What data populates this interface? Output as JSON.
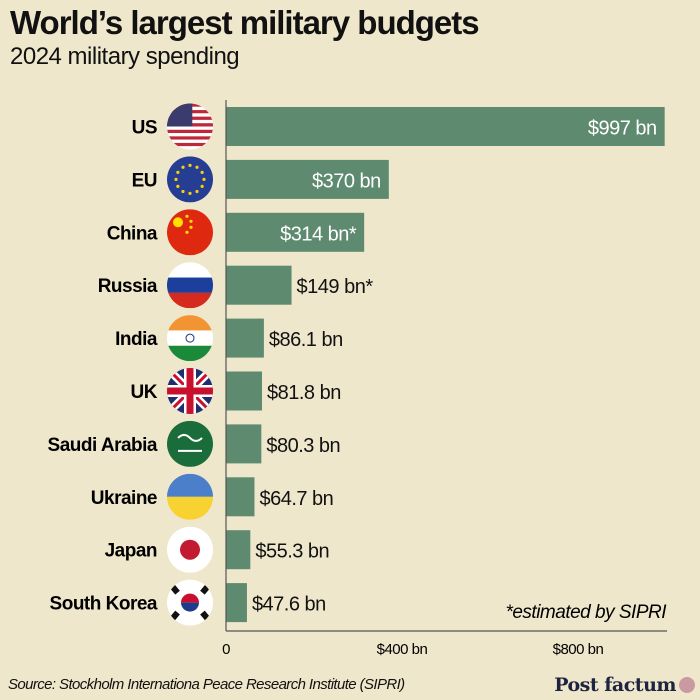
{
  "chart_data": {
    "type": "bar",
    "orientation": "horizontal",
    "title": "World’s largest military budgets",
    "subtitle": "2024 military spending",
    "categories": [
      "US",
      "EU",
      "China",
      "Russia",
      "India",
      "UK",
      "Saudi Arabia",
      "Ukraine",
      "Japan",
      "South Korea"
    ],
    "values": [
      997,
      370,
      314,
      149,
      86.1,
      81.8,
      80.3,
      64.7,
      55.3,
      47.6
    ],
    "data_labels": [
      "$997 bn",
      "$370 bn",
      "$314 bn*",
      "$149 bn*",
      "$86.1 bn",
      "$81.8 bn",
      "$80.3 bn",
      "$64.7 bn",
      "$55.3 bn",
      "$47.6 bn"
    ],
    "flags": [
      "us-flag",
      "eu-flag",
      "china-flag",
      "russia-flag",
      "india-flag",
      "uk-flag",
      "saudi-arabia-flag",
      "ukraine-flag",
      "japan-flag",
      "south-korea-flag"
    ],
    "xticks": [
      0,
      400,
      800
    ],
    "xtick_labels": [
      "0",
      "$400 bn",
      "$800 bn"
    ],
    "xlim": [
      0,
      1000
    ],
    "bar_color": "#5e8a70",
    "grid": false,
    "annotation": "*estimated by SIPRI"
  },
  "source": "Source: Stockholm Internationa Peace Research Institute (SIPRI)",
  "brand": "Post factum"
}
